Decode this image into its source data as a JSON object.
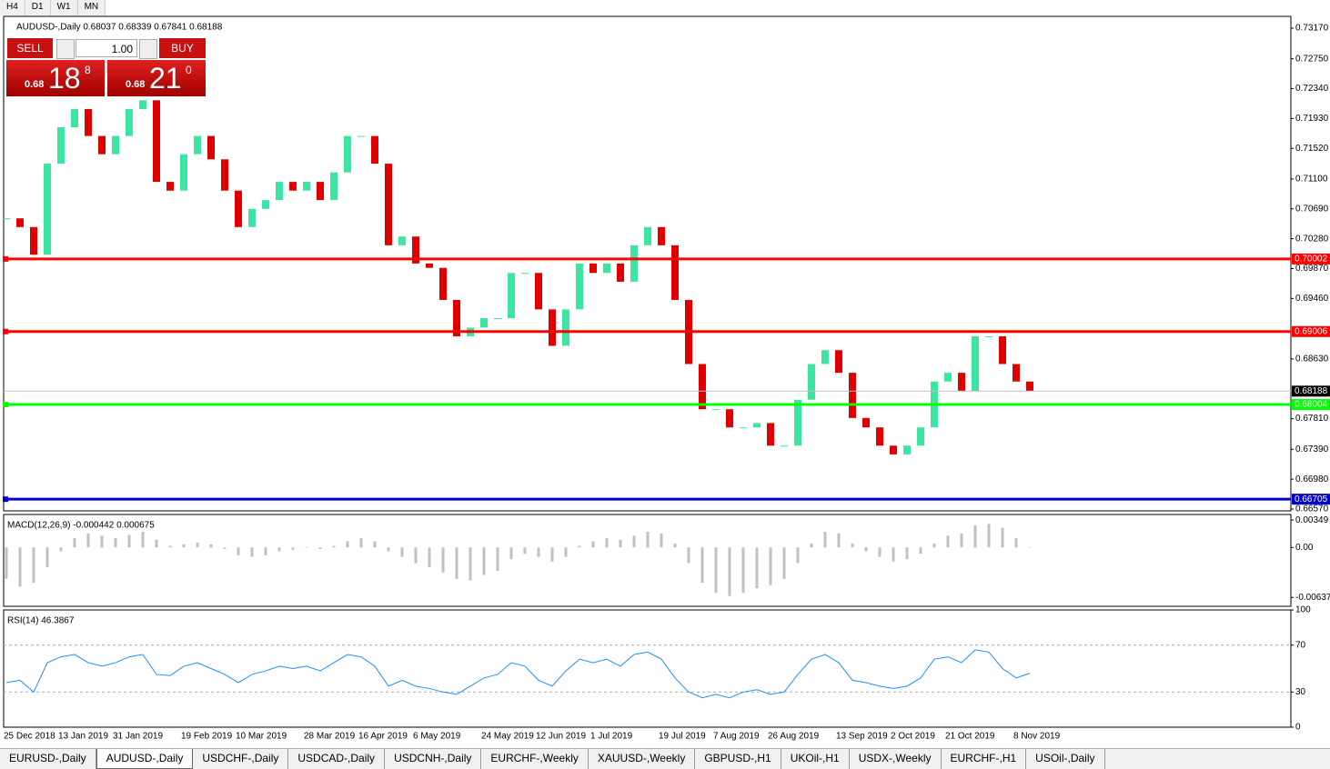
{
  "toolbar": {
    "timeframes": [
      "H4",
      "D1",
      "W1",
      "MN"
    ]
  },
  "trade_panel": {
    "sell": "SELL",
    "buy": "BUY",
    "lots": "1.00",
    "bid": {
      "big": "0.68",
      "pips": "18",
      "frac": "8"
    },
    "ask": {
      "big": "0.68",
      "pips": "21",
      "frac": "0"
    }
  },
  "chart_data": [
    {
      "type": "candlestick",
      "title": "AUDUSD-,Daily 0.68037 0.68339 0.67841 0.68188",
      "up_color": "#3ce6a0",
      "down_color": "#e00000",
      "categories": [
        "25 Dec 2018",
        null,
        null,
        null,
        "13 Jan 2019",
        null,
        null,
        null,
        "31 Jan 2019",
        null,
        null,
        null,
        null,
        "19 Feb 2019",
        null,
        null,
        null,
        "10 Mar 2019",
        null,
        null,
        null,
        null,
        "28 Mar 2019",
        null,
        null,
        null,
        "16 Apr 2019",
        null,
        null,
        null,
        "6 May 2019",
        null,
        null,
        null,
        null,
        "24 May 2019",
        null,
        null,
        null,
        "12 Jun 2019",
        null,
        null,
        null,
        "1 Jul 2019",
        null,
        null,
        null,
        null,
        "19 Jul 2019",
        null,
        null,
        null,
        "7 Aug 2019",
        null,
        null,
        null,
        "26 Aug 2019",
        null,
        null,
        null,
        null,
        "13 Sep 2019",
        null,
        null,
        null,
        "2 Oct 2019",
        null,
        null,
        null,
        "21 Oct 2019",
        null,
        null,
        null,
        null,
        "8 Nov 2019",
        null
      ],
      "values": [
        0.7056,
        0.7044,
        0.7006,
        0.7131,
        0.7181,
        0.7206,
        0.7169,
        0.7144,
        0.7169,
        0.7206,
        0.7218,
        0.7106,
        0.7094,
        0.7144,
        0.7169,
        0.7137,
        0.7094,
        0.7044,
        0.7069,
        0.7081,
        0.7106,
        0.7094,
        0.7106,
        0.7081,
        0.7119,
        0.7169,
        0.7169,
        0.7131,
        0.7019,
        0.7031,
        0.6994,
        0.6988,
        0.6944,
        0.6894,
        0.6906,
        0.6919,
        0.6919,
        0.6981,
        0.6981,
        0.6931,
        0.6881,
        0.6931,
        0.6994,
        0.6981,
        0.6994,
        0.6969,
        0.7019,
        0.7044,
        0.7019,
        0.6944,
        0.6856,
        0.6794,
        0.6794,
        0.6769,
        0.6769,
        0.6775,
        0.6744,
        0.6744,
        0.6807,
        0.6856,
        0.6875,
        0.6844,
        0.6782,
        0.6769,
        0.6744,
        0.6732,
        0.6744,
        0.6769,
        0.6832,
        0.6844,
        0.6819,
        0.6894,
        0.6894,
        0.6856,
        0.6832,
        0.6819
      ],
      "ylim": [
        0.66545,
        0.73332
      ],
      "yticks": [
        {
          "value": 0.7317,
          "label": "0.73170"
        },
        {
          "value": 0.7275,
          "label": "0.72750"
        },
        {
          "value": 0.7234,
          "label": "0.72340"
        },
        {
          "value": 0.7193,
          "label": "0.71930"
        },
        {
          "value": 0.7152,
          "label": "0.71520"
        },
        {
          "value": 0.711,
          "label": "0.71100"
        },
        {
          "value": 0.7069,
          "label": "0.70690"
        },
        {
          "value": 0.7028,
          "label": "0.70280"
        },
        {
          "value": 0.6987,
          "label": "0.69870"
        },
        {
          "value": 0.6946,
          "label": "0.69460"
        },
        {
          "value": 0.6863,
          "label": "0.68630"
        },
        {
          "value": 0.6781,
          "label": "0.67810"
        },
        {
          "value": 0.6739,
          "label": "0.67390"
        },
        {
          "value": 0.6698,
          "label": "0.66980"
        },
        {
          "value": 0.6657,
          "label": "0.66570"
        }
      ],
      "levels": [
        {
          "value": 0.70002,
          "color": "#ff0000"
        },
        {
          "value": 0.69006,
          "color": "#ff0000"
        },
        {
          "value": 0.68004,
          "color": "#00ff00"
        },
        {
          "value": 0.66705,
          "color": "#0000cd"
        }
      ],
      "last_price": 0.68188
    },
    {
      "type": "bar",
      "title": "MACD(12,26,9) -0.000442 0.000675",
      "color": "#c0c0c0",
      "values": [
        -0.004,
        -0.005,
        -0.0045,
        -0.0025,
        -0.0005,
        0.0012,
        0.0018,
        0.0015,
        0.0012,
        0.0016,
        0.002,
        0.001,
        0.0002,
        0.0004,
        0.0006,
        0.0004,
        -0.0002,
        -0.001,
        -0.0012,
        -0.001,
        -0.0005,
        -0.0003,
        0,
        -0.0002,
        0.0002,
        0.0008,
        0.0012,
        0.0008,
        -0.0005,
        -0.0012,
        -0.002,
        -0.0025,
        -0.0032,
        -0.004,
        -0.0042,
        -0.0035,
        -0.003,
        -0.0015,
        -0.0008,
        -0.0012,
        -0.0018,
        -0.0012,
        0.0002,
        0.0008,
        0.0012,
        0.001,
        0.0015,
        0.002,
        0.0018,
        0.0005,
        -0.002,
        -0.0045,
        -0.0058,
        -0.0062,
        -0.0058,
        -0.0052,
        -0.0048,
        -0.004,
        -0.002,
        0.0005,
        0.002,
        0.0018,
        0.0005,
        -0.0005,
        -0.0012,
        -0.0018,
        -0.0015,
        -0.0008,
        0.0005,
        0.0015,
        0.0018,
        0.0028,
        0.003,
        0.0025,
        0.0012,
        0
      ],
      "ylim": [
        -0.0075,
        0.0042
      ],
      "yticks": [
        0.00349,
        {
          "value": 0,
          "label": "0.00"
        },
        -0.00637
      ]
    },
    {
      "type": "line",
      "title": "RSI(14) 46.3867",
      "color": "#1e90ff",
      "values": [
        38,
        40,
        30,
        55,
        60,
        62,
        55,
        52,
        55,
        60,
        62,
        45,
        44,
        52,
        55,
        50,
        45,
        38,
        45,
        48,
        52,
        50,
        52,
        48,
        55,
        62,
        60,
        52,
        35,
        40,
        35,
        33,
        30,
        28,
        35,
        42,
        45,
        55,
        52,
        40,
        35,
        48,
        58,
        55,
        58,
        52,
        62,
        64,
        58,
        42,
        30,
        25,
        28,
        25,
        30,
        32,
        28,
        30,
        45,
        58,
        62,
        55,
        40,
        38,
        35,
        33,
        35,
        42,
        58,
        60,
        55,
        66,
        64,
        50,
        42,
        46
      ],
      "ylim": [
        0,
        100
      ],
      "yticks": [
        100,
        70,
        30,
        0
      ],
      "levels": [
        70,
        30
      ]
    }
  ],
  "tabs": [
    "EURUSD-,Daily",
    "AUDUSD-,Daily",
    "USDCHF-,Daily",
    "USDCAD-,Daily",
    "USDCNH-,Daily",
    "EURCHF-,Weekly",
    "XAUUSD-,Weekly",
    "GBPUSD-,H1",
    "UKOil-,H1",
    "USDX-,Weekly",
    "EURCHF-,H1",
    "USOil-,Daily"
  ],
  "active_tab": 1
}
